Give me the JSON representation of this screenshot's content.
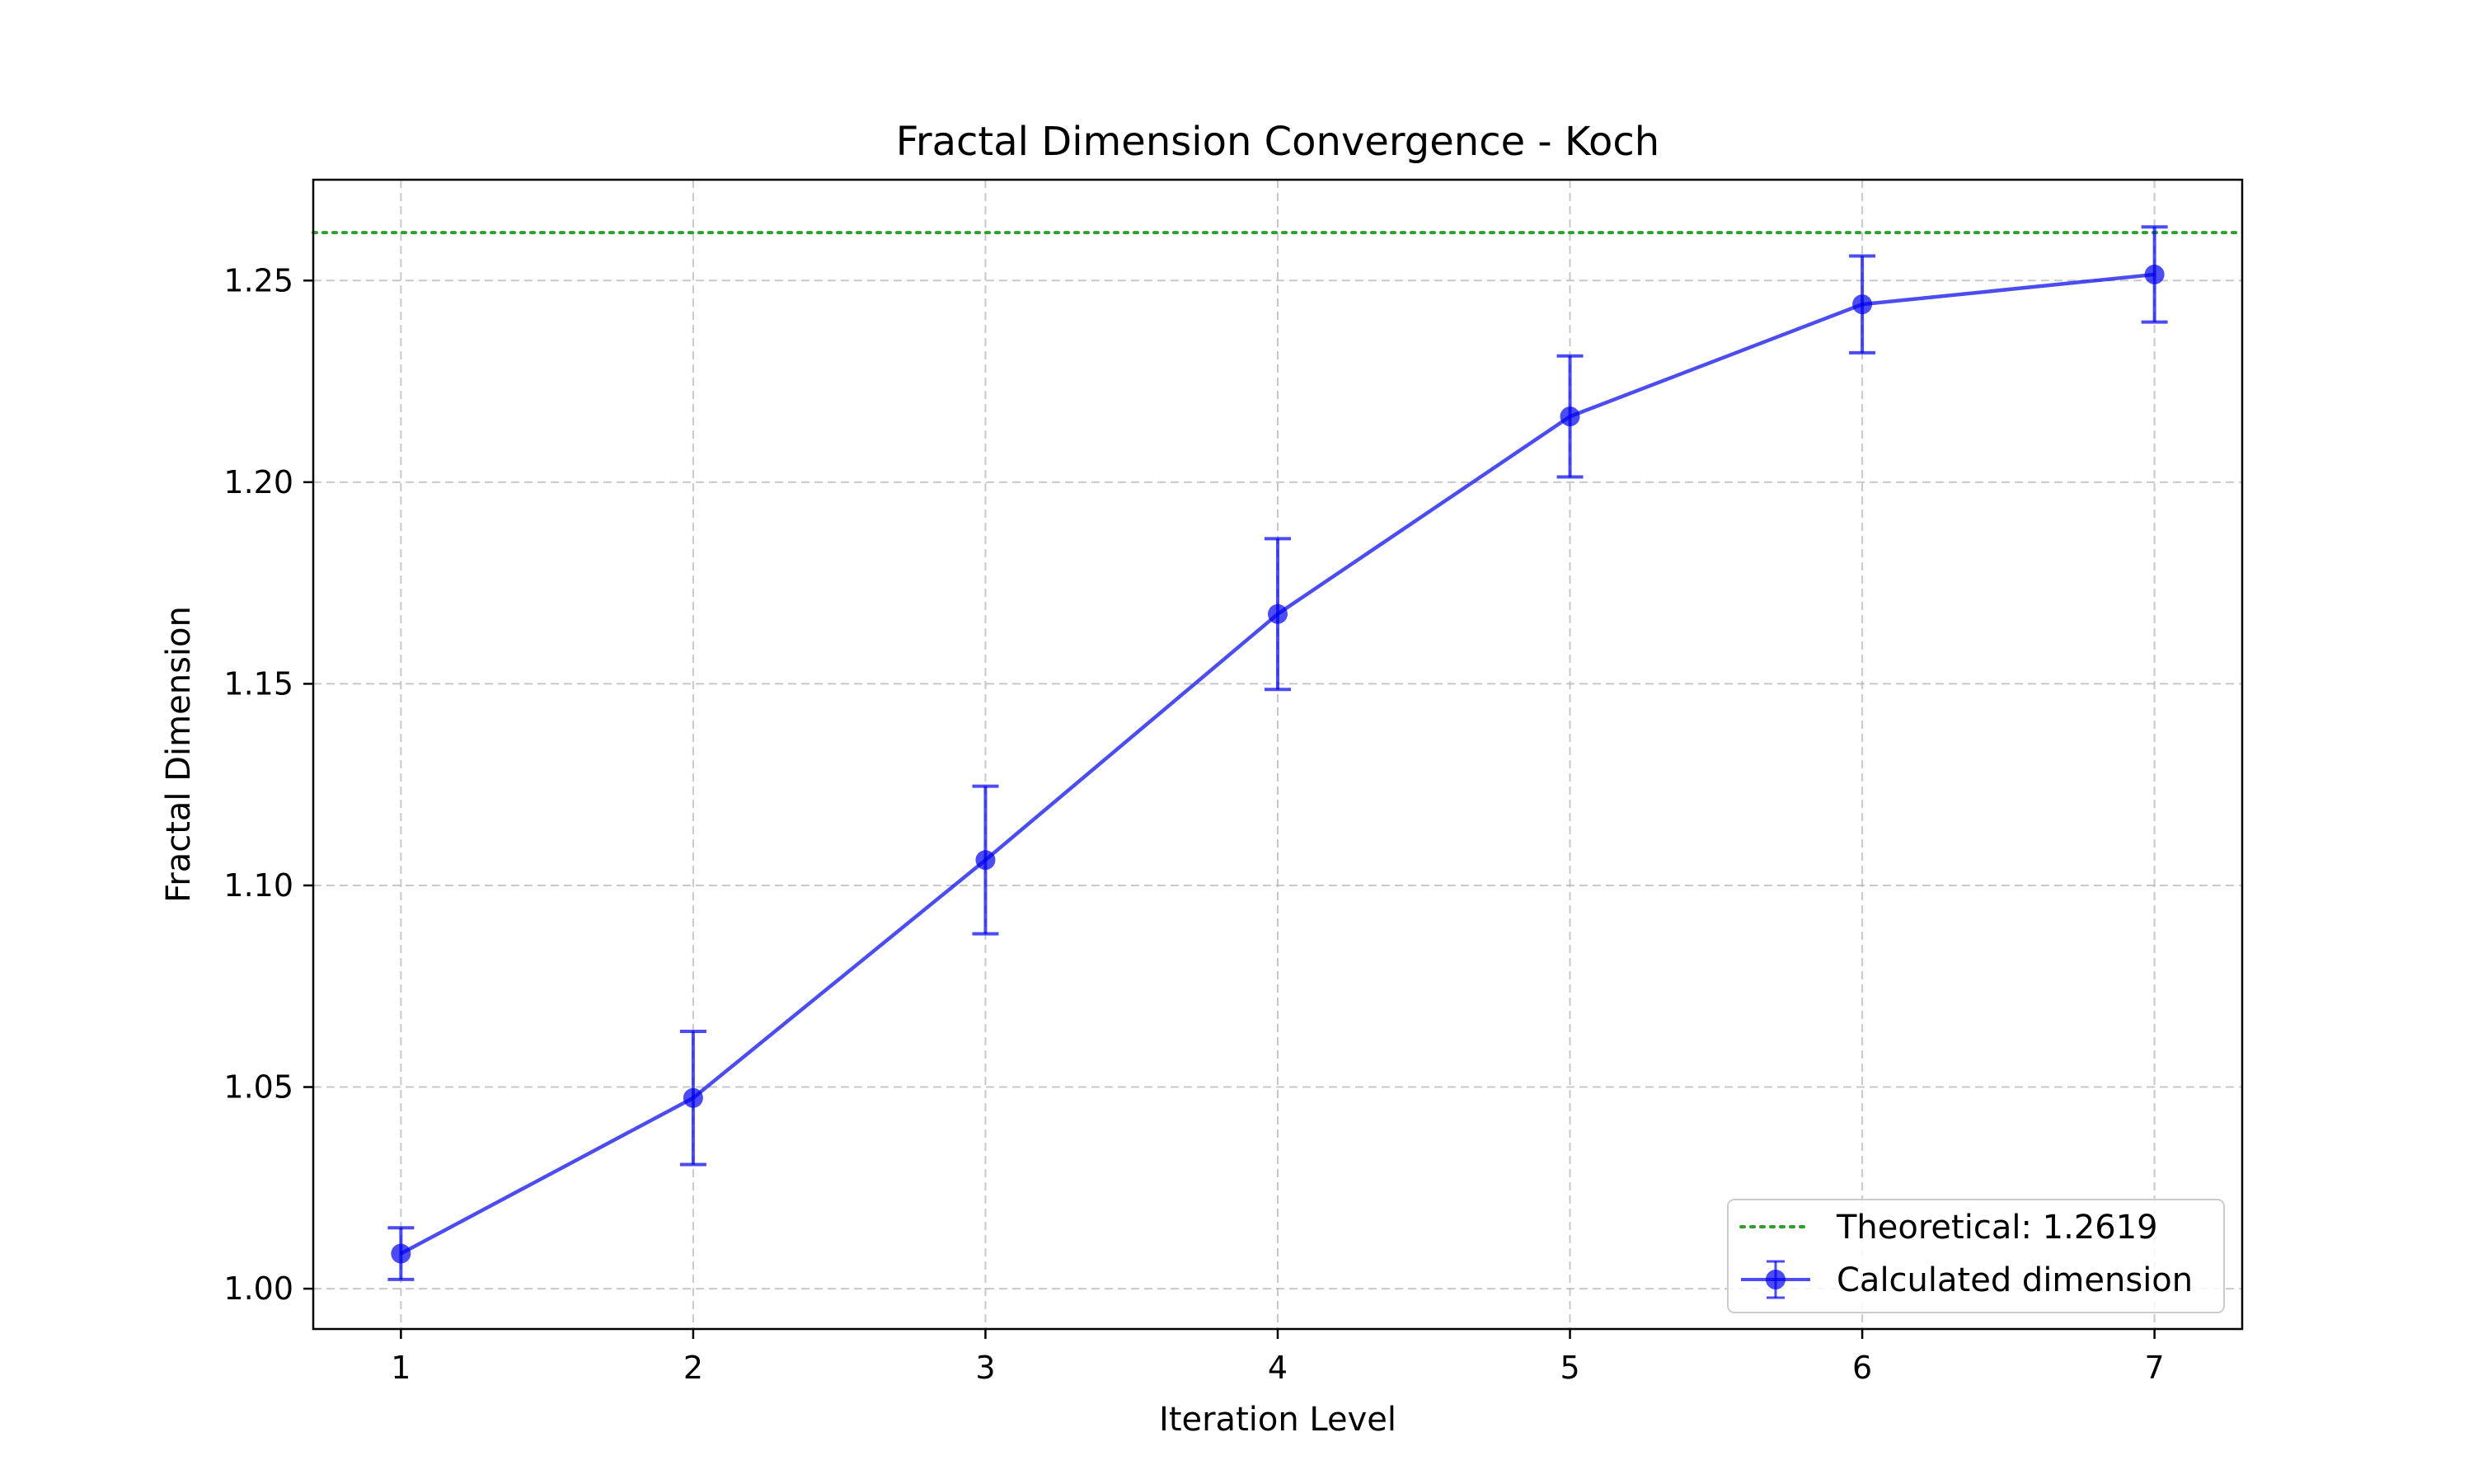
{
  "chart_data": {
    "type": "line",
    "title": "Fractal Dimension Convergence - Koch",
    "xlabel": "Iteration Level",
    "ylabel": "Fractal Dimension",
    "xlim": [
      0.7,
      7.3
    ],
    "ylim": [
      0.99,
      1.275
    ],
    "x_ticks": [
      1,
      2,
      3,
      4,
      5,
      6,
      7
    ],
    "y_ticks": [
      1.0,
      1.05,
      1.1,
      1.15,
      1.2,
      1.25
    ],
    "y_tick_labels": [
      "1.00",
      "1.05",
      "1.10",
      "1.15",
      "1.20",
      "1.25"
    ],
    "grid": true,
    "legend_position": "lower-right",
    "series": [
      {
        "name": "Calculated dimension",
        "color": "#0000ee",
        "style": "line-with-markers-and-errorbars",
        "x": [
          1,
          2,
          3,
          4,
          5,
          6,
          7
        ],
        "y": [
          1.0087,
          1.0473,
          1.1063,
          1.1673,
          1.2163,
          1.2441,
          1.2515
        ],
        "yerr": [
          0.0064,
          0.0165,
          0.0183,
          0.0187,
          0.015,
          0.012,
          0.0118
        ]
      }
    ],
    "reference_lines": [
      {
        "name": "Theoretical: 1.2619",
        "y": 1.2619,
        "color": "#2ca02c",
        "style": "dotted"
      }
    ]
  }
}
